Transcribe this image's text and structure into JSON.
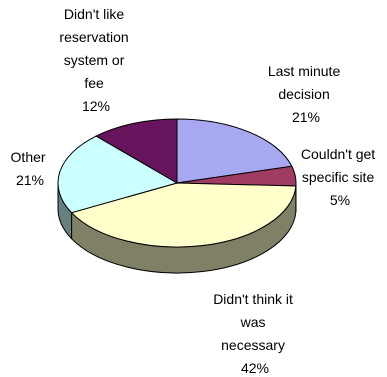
{
  "chart_data": {
    "type": "pie",
    "three_d": true,
    "legend": "none",
    "slices": [
      {
        "label_lines": [
          "Last minute",
          "decision"
        ],
        "percent_label": "21%",
        "value": 21,
        "color": "#a8a8f0"
      },
      {
        "label_lines": [
          "Couldn't get",
          "specific site"
        ],
        "percent_label": "5%",
        "value": 5,
        "color": "#a03c64"
      },
      {
        "label_lines": [
          "Didn't think it",
          "was",
          "necessary"
        ],
        "percent_label": "42%",
        "value": 42,
        "color": "#ffffcc"
      },
      {
        "label_lines": [
          "Other"
        ],
        "percent_label": "21%",
        "value": 21,
        "color": "#ccffff"
      },
      {
        "label_lines": [
          "Didn't like",
          "reservation",
          "system or",
          "fee"
        ],
        "percent_label": "12%",
        "value": 12,
        "color": "#66145c"
      }
    ]
  }
}
